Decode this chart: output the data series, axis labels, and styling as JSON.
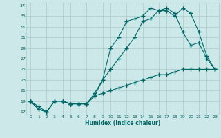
{
  "xlabel": "Humidex (Indice chaleur)",
  "bg_color": "#cce8e8",
  "grid_color": "#aacccc",
  "line_color": "#006666",
  "xmin": 0,
  "xmax": 23,
  "ymin": 17,
  "ymax": 37,
  "yticks": [
    17,
    19,
    21,
    23,
    25,
    27,
    29,
    31,
    33,
    35,
    37
  ],
  "xticks": [
    0,
    1,
    2,
    3,
    4,
    5,
    6,
    7,
    8,
    9,
    10,
    11,
    12,
    13,
    14,
    15,
    16,
    17,
    18,
    19,
    20,
    21,
    22,
    23
  ],
  "line1_x": [
    0,
    1,
    2,
    3,
    4,
    5,
    6,
    7,
    8,
    9,
    10,
    11,
    12,
    13,
    14,
    15,
    16,
    17,
    18,
    19,
    20,
    21,
    22,
    23
  ],
  "line1_y": [
    19,
    18,
    17,
    19,
    19,
    18.5,
    18.5,
    18.5,
    20.5,
    23,
    29,
    31,
    34,
    34.5,
    35,
    36.5,
    36,
    36.5,
    35.5,
    32,
    29.5,
    30,
    27,
    25
  ],
  "line2_x": [
    0,
    1,
    2,
    3,
    4,
    5,
    6,
    7,
    8,
    9,
    10,
    11,
    12,
    13,
    14,
    15,
    16,
    17,
    18,
    19,
    20,
    21,
    22,
    23
  ],
  "line2_y": [
    19,
    17.5,
    17,
    19,
    19,
    18.5,
    18.5,
    18.5,
    20,
    23,
    25,
    27,
    29,
    31,
    34,
    34.5,
    36,
    36,
    35,
    36.5,
    35.5,
    32,
    27.5,
    25
  ],
  "line3_x": [
    0,
    1,
    2,
    3,
    4,
    5,
    6,
    7,
    8,
    9,
    10,
    11,
    12,
    13,
    14,
    15,
    16,
    17,
    18,
    19,
    20,
    21,
    22,
    23
  ],
  "line3_y": [
    19,
    17.5,
    17,
    19,
    19,
    18.5,
    18.5,
    18.5,
    20,
    20.5,
    21,
    21.5,
    22,
    22.5,
    23,
    23.5,
    24,
    24,
    24.5,
    25,
    25,
    25,
    25,
    25
  ]
}
